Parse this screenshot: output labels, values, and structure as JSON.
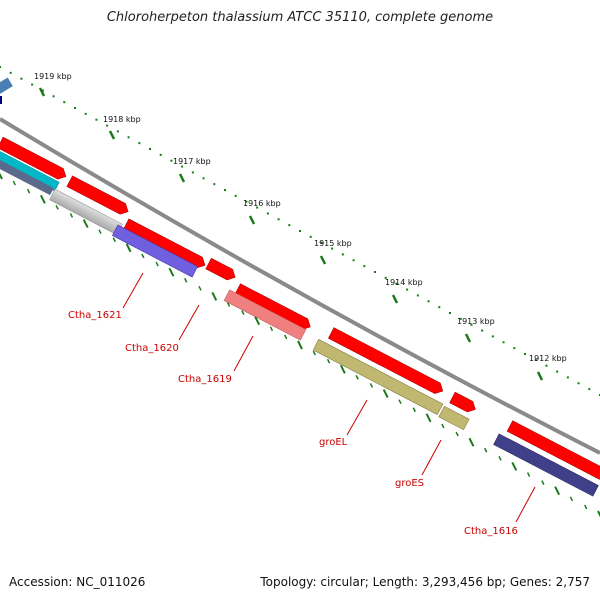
{
  "title": "Chloroherpeton thalassium ATCC 35110, complete genome",
  "footer": {
    "accession": "Accession: NC_011026",
    "summary": "Topology: circular; Length: 3,293,456 bp; Genes: 2,757"
  },
  "ticks": [
    {
      "label": "1919 kbp"
    },
    {
      "label": "1918 kbp"
    },
    {
      "label": "1917 kbp"
    },
    {
      "label": "1916 kbp"
    },
    {
      "label": "1915 kbp"
    },
    {
      "label": "1914 kbp"
    },
    {
      "label": "1913 kbp"
    },
    {
      "label": "1912 kbp"
    }
  ],
  "gene_labels": [
    {
      "label": "Ctha_1621",
      "color": "#cc0000"
    },
    {
      "label": "Ctha_1620",
      "color": "#cc0000"
    },
    {
      "label": "Ctha_1619",
      "color": "#cc0000"
    },
    {
      "label": "groEL",
      "color": "#cc0000"
    },
    {
      "label": "groES",
      "color": "#cc0000"
    },
    {
      "label": "Ctha_1616",
      "color": "#cc0000"
    }
  ],
  "colors": {
    "backbone": "#8a8a8a",
    "cds": "#ff0000",
    "tick": "#1a7a1a",
    "dot": "#1a7a1a"
  }
}
